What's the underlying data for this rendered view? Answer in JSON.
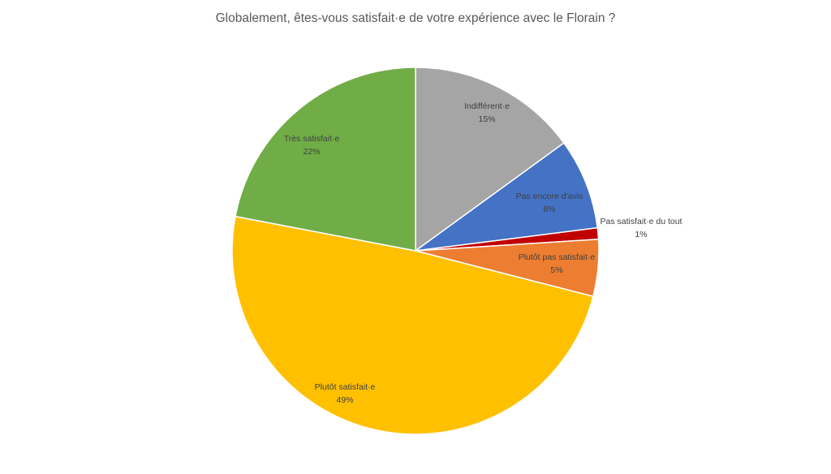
{
  "chart_data": {
    "type": "pie",
    "title": "Globalement, êtes-vous satisfait·e de votre expérience avec le Florain ?",
    "slices": [
      {
        "label": "Indifférent·e",
        "value": 15,
        "value_text": "15%",
        "color": "#A5A5A5"
      },
      {
        "label": "Pas encore d'avis",
        "value": 8,
        "value_text": "8%",
        "color": "#4472C4"
      },
      {
        "label": "Pas satisfait·e du tout",
        "value": 1,
        "value_text": "1%",
        "color": "#C00000"
      },
      {
        "label": "Plutôt pas satisfait·e",
        "value": 5,
        "value_text": "5%",
        "color": "#ED7D31"
      },
      {
        "label": "Plutôt satisfait·e",
        "value": 49,
        "value_text": "49%",
        "color": "#FFC000"
      },
      {
        "label": "Très satisfait·e",
        "value": 22,
        "value_text": "22%",
        "color": "#70AD47"
      }
    ]
  }
}
